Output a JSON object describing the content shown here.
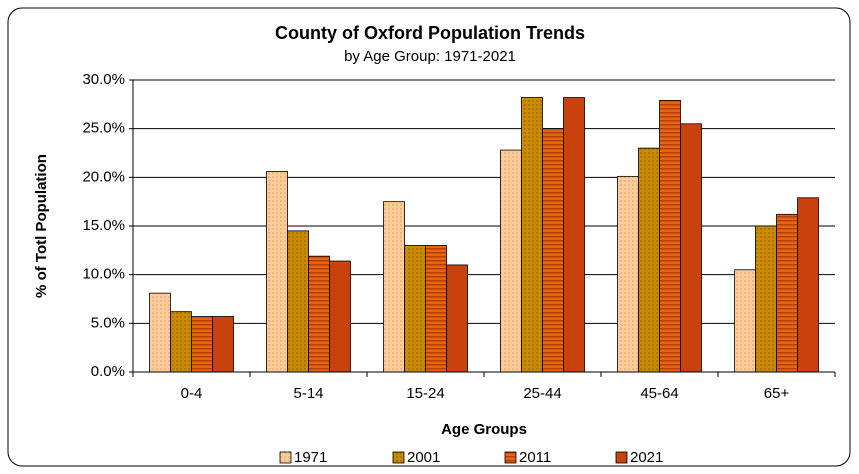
{
  "chart_data": {
    "type": "bar",
    "title": "County of Oxford Population Trends",
    "subtitle": "by Age Group: 1971-2021",
    "x_label": "Age Groups",
    "y_label": "% of Totl Population",
    "categories": [
      "0-4",
      "5-14",
      "15-24",
      "25-44",
      "45-64",
      "65+"
    ],
    "series": [
      {
        "name": "1971",
        "color": "#ffcc99",
        "values": [
          8.1,
          20.6,
          17.5,
          22.8,
          20.1,
          10.5
        ]
      },
      {
        "name": "2001",
        "color": "#cc8a00",
        "values": [
          6.2,
          14.5,
          13.0,
          28.2,
          23.0,
          15.0
        ]
      },
      {
        "name": "2011",
        "color": "#e8650f",
        "values": [
          5.7,
          11.9,
          13.0,
          25.0,
          27.9,
          16.2
        ]
      },
      {
        "name": "2021",
        "color": "#c9410c",
        "values": [
          5.7,
          11.4,
          11.0,
          28.2,
          25.5,
          17.9
        ]
      }
    ],
    "ylim": [
      0,
      30
    ],
    "yticks": [
      {
        "value": 0,
        "label": "0.0%"
      },
      {
        "value": 5,
        "label": "5.0%"
      },
      {
        "value": 10,
        "label": "10.0%"
      },
      {
        "value": 15,
        "label": "15.0%"
      },
      {
        "value": 20,
        "label": "20.0%"
      },
      {
        "value": 25,
        "label": "25.0%"
      },
      {
        "value": 30,
        "label": "30.0%"
      }
    ],
    "grid": true,
    "legend": "bottom"
  }
}
